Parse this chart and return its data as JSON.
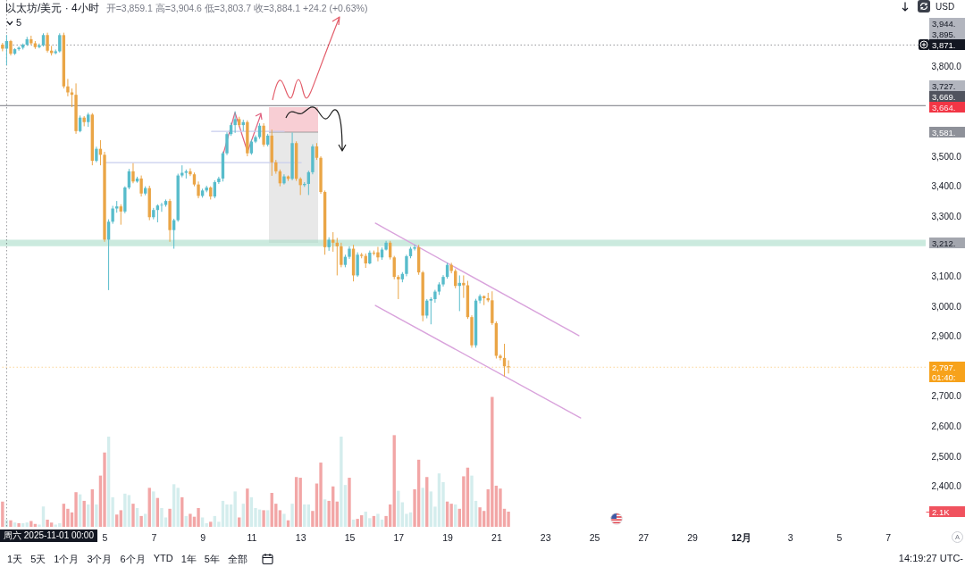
{
  "chart_data": {
    "type": "candlestick",
    "title": "以太坊/美元 · 4小时",
    "subtitle": "开=3,859.1 高=3,904.6 低=3,803.7 收=3,884.1 +24.2 (+0.63%)",
    "x": [
      "2025-10-31T20:00",
      "2025-11-01T00:00",
      "2025-11-01T04:00",
      "2025-11-01T08:00",
      "2025-11-01T12:00",
      "2025-11-01T16:00",
      "2025-11-01T20:00",
      "2025-11-02T00:00",
      "2025-11-02T04:00",
      "2025-11-02T08:00",
      "2025-11-02T12:00",
      "2025-11-02T16:00",
      "2025-11-02T20:00",
      "2025-11-03T00:00",
      "2025-11-03T04:00",
      "2025-11-03T08:00",
      "2025-11-03T12:00",
      "2025-11-03T16:00",
      "2025-11-03T20:00",
      "2025-11-04T00:00",
      "2025-11-04T04:00",
      "2025-11-04T08:00",
      "2025-11-04T12:00",
      "2025-11-04T16:00",
      "2025-11-04T20:00",
      "2025-11-05T00:00",
      "2025-11-05T04:00",
      "2025-11-05T08:00",
      "2025-11-05T12:00",
      "2025-11-05T16:00",
      "2025-11-05T20:00",
      "2025-11-06T00:00",
      "2025-11-06T04:00",
      "2025-11-06T08:00",
      "2025-11-06T12:00",
      "2025-11-06T16:00",
      "2025-11-06T20:00",
      "2025-11-07T00:00",
      "2025-11-07T04:00",
      "2025-11-07T08:00",
      "2025-11-07T12:00",
      "2025-11-07T16:00",
      "2025-11-07T20:00",
      "2025-11-08T00:00",
      "2025-11-08T04:00",
      "2025-11-08T08:00",
      "2025-11-08T12:00",
      "2025-11-08T16:00",
      "2025-11-08T20:00",
      "2025-11-09T00:00",
      "2025-11-09T04:00",
      "2025-11-09T08:00",
      "2025-11-09T12:00",
      "2025-11-09T16:00",
      "2025-11-09T20:00",
      "2025-11-10T00:00",
      "2025-11-10T04:00",
      "2025-11-10T08:00",
      "2025-11-10T12:00",
      "2025-11-10T16:00",
      "2025-11-10T20:00",
      "2025-11-11T00:00",
      "2025-11-11T04:00",
      "2025-11-11T08:00",
      "2025-11-11T12:00",
      "2025-11-11T16:00",
      "2025-11-11T20:00",
      "2025-11-12T00:00",
      "2025-11-12T04:00",
      "2025-11-12T08:00",
      "2025-11-12T12:00",
      "2025-11-12T16:00",
      "2025-11-12T20:00",
      "2025-11-13T00:00",
      "2025-11-13T04:00",
      "2025-11-13T08:00",
      "2025-11-13T12:00",
      "2025-11-13T16:00",
      "2025-11-13T20:00",
      "2025-11-14T00:00",
      "2025-11-14T04:00",
      "2025-11-14T08:00",
      "2025-11-14T12:00",
      "2025-11-14T16:00",
      "2025-11-14T20:00",
      "2025-11-15T00:00",
      "2025-11-15T04:00",
      "2025-11-15T08:00",
      "2025-11-15T12:00",
      "2025-11-15T16:00",
      "2025-11-15T20:00",
      "2025-11-16T00:00",
      "2025-11-16T04:00",
      "2025-11-16T08:00",
      "2025-11-16T12:00",
      "2025-11-16T16:00",
      "2025-11-16T20:00",
      "2025-11-17T00:00",
      "2025-11-17T04:00",
      "2025-11-17T08:00",
      "2025-11-17T12:00",
      "2025-11-17T16:00",
      "2025-11-17T20:00",
      "2025-11-18T00:00",
      "2025-11-18T04:00",
      "2025-11-18T08:00",
      "2025-11-18T12:00",
      "2025-11-18T16:00",
      "2025-11-18T20:00",
      "2025-11-19T00:00",
      "2025-11-19T04:00",
      "2025-11-19T08:00",
      "2025-11-19T12:00",
      "2025-11-19T16:00",
      "2025-11-19T20:00",
      "2025-11-20T00:00",
      "2025-11-20T04:00",
      "2025-11-20T08:00",
      "2025-11-20T12:00",
      "2025-11-20T16:00",
      "2025-11-20T20:00",
      "2025-11-21T00:00",
      "2025-11-21T04:00",
      "2025-11-21T08:00",
      "2025-11-21T12:00"
    ],
    "ohlc": [
      [
        3872,
        3878,
        3850,
        3859.1
      ],
      [
        3859.1,
        3904.6,
        3803.7,
        3884.1
      ],
      [
        3884,
        3888,
        3836,
        3842
      ],
      [
        3842,
        3860,
        3838,
        3857
      ],
      [
        3857,
        3866,
        3852,
        3862
      ],
      [
        3862,
        3876,
        3856,
        3872
      ],
      [
        3872,
        3898,
        3868,
        3890
      ],
      [
        3890,
        3902,
        3872,
        3877
      ],
      [
        3877,
        3884,
        3858,
        3864
      ],
      [
        3864,
        3876,
        3860,
        3870
      ],
      [
        3870,
        3910,
        3866,
        3904
      ],
      [
        3904,
        3912,
        3846,
        3852
      ],
      [
        3852,
        3868,
        3836,
        3844
      ],
      [
        3844,
        3856,
        3840,
        3850
      ],
      [
        3850,
        3910,
        3846,
        3904
      ],
      [
        3904,
        3912,
        3726,
        3733
      ],
      [
        3733,
        3758,
        3700,
        3713
      ],
      [
        3713,
        3726,
        3664,
        3705
      ],
      [
        3705,
        3743,
        3575,
        3584
      ],
      [
        3584,
        3636,
        3580,
        3629
      ],
      [
        3629,
        3634,
        3600,
        3614
      ],
      [
        3614,
        3645,
        3598,
        3639
      ],
      [
        3639,
        3644,
        3470,
        3485
      ],
      [
        3485,
        3532,
        3480,
        3525
      ],
      [
        3525,
        3554,
        3470,
        3505
      ],
      [
        3505,
        3515,
        3215,
        3222
      ],
      [
        3222,
        3290,
        3054,
        3282
      ],
      [
        3282,
        3335,
        3275,
        3326
      ],
      [
        3326,
        3351,
        3312,
        3333
      ],
      [
        3333,
        3340,
        3272,
        3316
      ],
      [
        3316,
        3400,
        3310,
        3396
      ],
      [
        3396,
        3458,
        3390,
        3450
      ],
      [
        3450,
        3477,
        3410,
        3416
      ],
      [
        3416,
        3432,
        3412,
        3426
      ],
      [
        3426,
        3436,
        3366,
        3376
      ],
      [
        3376,
        3400,
        3370,
        3394
      ],
      [
        3394,
        3402,
        3287,
        3297
      ],
      [
        3297,
        3328,
        3290,
        3321
      ],
      [
        3321,
        3340,
        3280,
        3336
      ],
      [
        3336,
        3345,
        3315,
        3338
      ],
      [
        3338,
        3356,
        3332,
        3351
      ],
      [
        3351,
        3358,
        3215,
        3254
      ],
      [
        3254,
        3292,
        3192,
        3287
      ],
      [
        3287,
        3442,
        3282,
        3436
      ],
      [
        3436,
        3470,
        3430,
        3445
      ],
      [
        3445,
        3456,
        3426,
        3450
      ],
      [
        3450,
        3460,
        3434,
        3440
      ],
      [
        3440,
        3446,
        3400,
        3406
      ],
      [
        3406,
        3416,
        3360,
        3368
      ],
      [
        3368,
        3392,
        3362,
        3386
      ],
      [
        3386,
        3402,
        3380,
        3396
      ],
      [
        3396,
        3400,
        3356,
        3366
      ],
      [
        3366,
        3420,
        3360,
        3414
      ],
      [
        3414,
        3432,
        3408,
        3426
      ],
      [
        3426,
        3516,
        3416,
        3510
      ],
      [
        3510,
        3580,
        3504,
        3574
      ],
      [
        3574,
        3612,
        3568,
        3604
      ],
      [
        3604,
        3650,
        3578,
        3624
      ],
      [
        3624,
        3632,
        3598,
        3604
      ],
      [
        3604,
        3622,
        3584,
        3614
      ],
      [
        3614,
        3620,
        3500,
        3510
      ],
      [
        3510,
        3556,
        3505,
        3549
      ],
      [
        3549,
        3570,
        3544,
        3564
      ],
      [
        3564,
        3610,
        3558,
        3602
      ],
      [
        3602,
        3610,
        3532,
        3539
      ],
      [
        3539,
        3575,
        3533,
        3569
      ],
      [
        3569,
        3589,
        3435,
        3480
      ],
      [
        3480,
        3488,
        3442,
        3450
      ],
      [
        3450,
        3456,
        3400,
        3410
      ],
      [
        3410,
        3440,
        3406,
        3433
      ],
      [
        3433,
        3436,
        3418,
        3425
      ],
      [
        3425,
        3579,
        3420,
        3544
      ],
      [
        3544,
        3550,
        3418,
        3425
      ],
      [
        3425,
        3430,
        3371,
        3404
      ],
      [
        3404,
        3414,
        3398,
        3408
      ],
      [
        3408,
        3452,
        3371,
        3447
      ],
      [
        3447,
        3540,
        3440,
        3533
      ],
      [
        3533,
        3544,
        3488,
        3495
      ],
      [
        3495,
        3500,
        3375,
        3381
      ],
      [
        3381,
        3386,
        3172,
        3197
      ],
      [
        3197,
        3230,
        3185,
        3222
      ],
      [
        3222,
        3247,
        3182,
        3212
      ],
      [
        3212,
        3228,
        3103,
        3200
      ],
      [
        3200,
        3212,
        3130,
        3138
      ],
      [
        3138,
        3172,
        3130,
        3165
      ],
      [
        3165,
        3200,
        3158,
        3192
      ],
      [
        3192,
        3205,
        3083,
        3103
      ],
      [
        3103,
        3180,
        3098,
        3172
      ],
      [
        3172,
        3178,
        3160,
        3168
      ],
      [
        3168,
        3176,
        3128,
        3143
      ],
      [
        3143,
        3186,
        3140,
        3179
      ],
      [
        3179,
        3186,
        3170,
        3176
      ],
      [
        3180,
        3198,
        3150,
        3163
      ],
      [
        3163,
        3196,
        3155,
        3189
      ],
      [
        3189,
        3218,
        3186,
        3212
      ],
      [
        3212,
        3218,
        3156,
        3163
      ],
      [
        3163,
        3168,
        3090,
        3098
      ],
      [
        3098,
        3104,
        3024,
        3090
      ],
      [
        3090,
        3114,
        3080,
        3108
      ],
      [
        3108,
        3172,
        3100,
        3167
      ],
      [
        3167,
        3198,
        3160,
        3192
      ],
      [
        3192,
        3205,
        3186,
        3197
      ],
      [
        3197,
        3205,
        3105,
        3113
      ],
      [
        3113,
        3118,
        2950,
        2969
      ],
      [
        2969,
        3024,
        2960,
        3019
      ],
      [
        3019,
        3030,
        2940,
        3024
      ],
      [
        3024,
        3055,
        3012,
        3049
      ],
      [
        3049,
        3080,
        3038,
        3073
      ],
      [
        3073,
        3104,
        3066,
        3098
      ],
      [
        3098,
        3145,
        3092,
        3138
      ],
      [
        3138,
        3145,
        3110,
        3118
      ],
      [
        3118,
        3124,
        3060,
        3068
      ],
      [
        3068,
        3103,
        2984,
        3078
      ],
      [
        3078,
        3103,
        3028,
        3070
      ],
      [
        3070,
        3085,
        2958,
        2964
      ],
      [
        2964,
        2970,
        2862,
        2870
      ],
      [
        2870,
        3025,
        2862,
        3019
      ],
      [
        3019,
        3040,
        3010,
        3034
      ],
      [
        3034,
        3036,
        3004,
        3027
      ],
      [
        3027,
        3045,
        3014,
        3020
      ],
      [
        3020,
        3050,
        2938,
        2944
      ],
      [
        2944,
        2950,
        2826,
        2835
      ],
      [
        2835,
        2840,
        2820,
        2828
      ],
      [
        2828,
        2875,
        2766,
        2800
      ],
      [
        2800,
        2820,
        2776,
        2797
      ]
    ],
    "colors": [
      "#eaa546",
      "#58bccb",
      "#eaa546",
      "#58bccb",
      "#58bccb",
      "#58bccb",
      "#58bccb",
      "#eaa546",
      "#eaa546",
      "#58bccb",
      "#58bccb",
      "#eaa546",
      "#eaa546",
      "#58bccb",
      "#58bccb",
      "#eaa546",
      "#eaa546",
      "#eaa546",
      "#eaa546",
      "#58bccb",
      "#eaa546",
      "#58bccb",
      "#eaa546",
      "#58bccb",
      "#eaa546",
      "#eaa546",
      "#58bccb",
      "#58bccb",
      "#58bccb",
      "#eaa546",
      "#58bccb",
      "#58bccb",
      "#eaa546",
      "#58bccb",
      "#eaa546",
      "#58bccb",
      "#eaa546",
      "#58bccb",
      "#58bccb",
      "#58bccb",
      "#58bccb",
      "#eaa546",
      "#58bccb",
      "#58bccb",
      "#58bccb",
      "#58bccb",
      "#eaa546",
      "#eaa546",
      "#eaa546",
      "#58bccb",
      "#58bccb",
      "#eaa546",
      "#58bccb",
      "#58bccb",
      "#58bccb",
      "#58bccb",
      "#58bccb",
      "#58bccb",
      "#eaa546",
      "#58bccb",
      "#eaa546",
      "#58bccb",
      "#58bccb",
      "#58bccb",
      "#eaa546",
      "#58bccb",
      "#eaa546",
      "#eaa546",
      "#eaa546",
      "#58bccb",
      "#eaa546",
      "#58bccb",
      "#eaa546",
      "#eaa546",
      "#58bccb",
      "#58bccb",
      "#58bccb",
      "#eaa546",
      "#eaa546",
      "#eaa546",
      "#58bccb",
      "#eaa546",
      "#eaa546",
      "#eaa546",
      "#58bccb",
      "#58bccb",
      "#eaa546",
      "#58bccb",
      "#eaa546",
      "#eaa546",
      "#58bccb",
      "#eaa546",
      "#eaa546",
      "#58bccb",
      "#58bccb",
      "#eaa546",
      "#eaa546",
      "#eaa546",
      "#58bccb",
      "#58bccb",
      "#58bccb",
      "#58bccb",
      "#eaa546",
      "#eaa546",
      "#58bccb",
      "#58bccb",
      "#58bccb",
      "#58bccb",
      "#58bccb",
      "#58bccb",
      "#eaa546",
      "#eaa546",
      "#58bccb",
      "#eaa546",
      "#eaa546",
      "#eaa546",
      "#58bccb",
      "#58bccb",
      "#eaa546",
      "#eaa546",
      "#eaa546",
      "#eaa546",
      "#eaa546",
      "#eaa546",
      "#eaa546"
    ],
    "series": [
      {
        "type": "bar",
        "axis": "y2",
        "values": [
          3.5,
          1.0,
          0.9,
          0.6,
          0.5,
          0.5,
          0.6,
          0.8,
          0.4,
          0.3,
          2.8,
          1.0,
          0.6,
          0.3,
          0.5,
          3.2,
          2.5,
          2.0,
          4.8,
          4.5,
          3.6,
          3.1,
          5.2,
          3.1,
          7.1,
          10.3,
          12.5,
          4.1,
          1.7,
          2.3,
          4.6,
          4.4,
          3.2,
          2.6,
          1.5,
          1.8,
          5.4,
          4.9,
          4.0,
          2.6,
          1.3,
          2.5,
          5.9,
          5.4,
          4.1,
          1.5,
          1.8,
          1.4,
          2.6,
          1.3,
          0.5,
          0.7,
          1.5,
          0.7,
          3.6,
          3.1,
          3.1,
          4.9,
          1.3,
          3.2,
          5.3,
          4.1,
          2.6,
          2.4,
          2.3,
          2.3,
          4.7,
          3.2,
          2.3,
          1.8,
          0.9,
          3.2,
          6.9,
          6.8,
          3.1,
          3.1,
          2.2,
          6.0,
          8.9,
          3.8,
          3.6,
          5.6,
          3.5,
          12.5,
          5.8,
          6.8,
          1.0,
          1.1,
          1.6,
          2.1,
          1.2,
          1.5,
          1.8,
          1.0,
          1.5,
          3.1,
          12.7,
          5.0,
          3.4,
          1.8,
          2.0,
          5.2,
          9.3,
          5.4,
          6.9,
          4.9,
          2.8,
          7.4,
          6.2,
          3.5,
          3.2,
          3.1,
          2.5,
          7.0,
          8.2,
          7.1,
          3.6,
          2.7,
          2.2,
          5.2,
          18.0,
          5.7,
          5.3,
          2.5,
          2.1
        ],
        "colors": [
          "#f2a6a6",
          "#d4eded",
          "#f2a6a6",
          "#d4eded",
          "#f2a6a6",
          "#d4eded",
          "#d4eded",
          "#f2a6a6",
          "#f2a6a6",
          "#d4eded",
          "#d4eded",
          "#f2a6a6",
          "#f2a6a6",
          "#d4eded",
          "#d4eded",
          "#f2a6a6",
          "#f2a6a6",
          "#f2a6a6",
          "#f2a6a6",
          "#d4eded",
          "#f2a6a6",
          "#d4eded",
          "#f2a6a6",
          "#d4eded",
          "#f2a6a6",
          "#f2a6a6",
          "#d4eded",
          "#d4eded",
          "#f2a6a6",
          "#f2a6a6",
          "#d4eded",
          "#d4eded",
          "#f2a6a6",
          "#d4eded",
          "#f2a6a6",
          "#d4eded",
          "#f2a6a6",
          "#d4eded",
          "#f2a6a6",
          "#d4eded",
          "#d4eded",
          "#f2a6a6",
          "#d4eded",
          "#d4eded",
          "#f2a6a6",
          "#d4eded",
          "#f2a6a6",
          "#f2a6a6",
          "#f2a6a6",
          "#d4eded",
          "#d4eded",
          "#f2a6a6",
          "#d4eded",
          "#d4eded",
          "#d4eded",
          "#d4eded",
          "#d4eded",
          "#d4eded",
          "#f2a6a6",
          "#d4eded",
          "#f2a6a6",
          "#d4eded",
          "#d4eded",
          "#d4eded",
          "#f2a6a6",
          "#d4eded",
          "#f2a6a6",
          "#f2a6a6",
          "#f2a6a6",
          "#d4eded",
          "#f2a6a6",
          "#d4eded",
          "#f2a6a6",
          "#f2a6a6",
          "#d4eded",
          "#d4eded",
          "#f2a6a6",
          "#f2a6a6",
          "#f2a6a6",
          "#d4eded",
          "#f2a6a6",
          "#f2a6a6",
          "#f2a6a6",
          "#d4eded",
          "#d4eded",
          "#f2a6a6",
          "#d4eded",
          "#f2a6a6",
          "#f2a6a6",
          "#d4eded",
          "#d4eded",
          "#f2a6a6",
          "#d4eded",
          "#d4eded",
          "#f2a6a6",
          "#f2a6a6",
          "#f2a6a6",
          "#d4eded",
          "#d4eded",
          "#d4eded",
          "#d4eded",
          "#f2a6a6",
          "#f2a6a6",
          "#d4eded",
          "#f2a6a6",
          "#d4eded",
          "#d4eded",
          "#d4eded",
          "#d4eded",
          "#f2a6a6",
          "#f2a6a6",
          "#d4eded",
          "#f2a6a6",
          "#f2a6a6",
          "#f2a6a6",
          "#d4eded",
          "#d4eded",
          "#f2a6a6",
          "#f2a6a6",
          "#f2a6a6",
          "#f2a6a6",
          "#f2a6a6",
          "#f2a6a6",
          "#f2a6a6",
          "#f2a6a6"
        ]
      },
      {
        "type": "line",
        "x": [
          "2025-11-16T01:30",
          "2025-11-24T09:00"
        ],
        "values": [
          3277,
          2902
        ],
        "color": "#d9a3dc"
      },
      {
        "type": "line",
        "x": [
          "2025-11-16T01:30",
          "2025-11-24T10:45"
        ],
        "values": [
          3003,
          2628
        ],
        "color": "#d9a3dc"
      },
      {
        "type": "line",
        "x": [
          "2025-11-09T09:00",
          "2025-11-12T08:00"
        ],
        "values": [
          3583,
          3583
        ],
        "color": "#c8cdee"
      },
      {
        "type": "line",
        "x": [
          "2025-11-05T01:00",
          "2025-11-13T00:45"
        ],
        "values": [
          3479,
          3479
        ],
        "color": "#c8cdee"
      }
    ],
    "xlim": [
      "2025-10-31T17:30",
      "2025-12-08T13:00"
    ],
    "xticks": [
      {
        "value": "2025-11-05T00:00",
        "label": "5"
      },
      {
        "value": "2025-11-07T00:00",
        "label": "7"
      },
      {
        "value": "2025-11-09T00:00",
        "label": "9"
      },
      {
        "value": "2025-11-11T00:00",
        "label": "11"
      },
      {
        "value": "2025-11-13T00:00",
        "label": "13"
      },
      {
        "value": "2025-11-15T00:00",
        "label": "15"
      },
      {
        "value": "2025-11-17T00:00",
        "label": "17"
      },
      {
        "value": "2025-11-19T00:00",
        "label": "19"
      },
      {
        "value": "2025-11-21T00:00",
        "label": "21"
      },
      {
        "value": "2025-11-23T00:00",
        "label": "23"
      },
      {
        "value": "2025-11-25T00:00",
        "label": "25"
      },
      {
        "value": "2025-11-27T00:00",
        "label": "27"
      },
      {
        "value": "2025-11-29T00:00",
        "label": "29"
      },
      {
        "value": "2025-12-01T00:00",
        "label": "12月"
      },
      {
        "value": "2025-12-03T00:00",
        "label": "3"
      },
      {
        "value": "2025-12-05T00:00",
        "label": "5"
      },
      {
        "value": "2025-12-07T00:00",
        "label": "7"
      }
    ],
    "ylim": [
      2265,
      4021
    ],
    "yticks": [
      {
        "value": 3800,
        "label": "3,800.0"
      },
      {
        "value": 3500,
        "label": "3,500.0"
      },
      {
        "value": 3400,
        "label": "3,400.0"
      },
      {
        "value": 3300,
        "label": "3,300.0"
      },
      {
        "value": 3100,
        "label": "3,100.0"
      },
      {
        "value": 3000,
        "label": "3,000.0"
      },
      {
        "value": 2900,
        "label": "2,900.0"
      },
      {
        "value": 2700,
        "label": "2,700.0"
      },
      {
        "value": 2600,
        "label": "2,600.0"
      },
      {
        "value": 2500,
        "label": "2,500.0"
      },
      {
        "value": 2400,
        "label": "2,400.0"
      }
    ],
    "y2lim": [
      0,
      73
    ],
    "y2ticks": [
      {
        "value": 2.1,
        "label": "2.1K"
      }
    ],
    "ref_lines": [
      {
        "axis": "x",
        "value": "2025-11-01T00:00",
        "label": "周六 2025-11-01 00:00",
        "color": "#131722",
        "line_style": "dotted"
      },
      {
        "axis": "y",
        "value": 3871,
        "label": "3,871.",
        "color": "#131722",
        "line_style": "dotted"
      },
      {
        "axis": "y",
        "value": 3669,
        "label": "3,669.",
        "color": "#50535e"
      },
      {
        "axis": "y",
        "value": 2797,
        "label": "2,797.\n01:40:",
        "color": "#f7a21b",
        "line_style": "dotted"
      }
    ],
    "bands": [
      {
        "axis": "y",
        "from": 3200,
        "to": 3222,
        "label": "3,212.",
        "color": "#a8dcc8"
      }
    ],
    "annotations": [
      "USD",
      "5",
      "3,944.",
      "3,895.",
      "3,727.",
      "3,664.",
      "3,581.",
      "1天",
      "5天",
      "1个月",
      "3个月",
      "6个月",
      "YTD",
      "1年",
      "5年",
      "全部",
      "14:19:27 UTC-",
      "A"
    ]
  }
}
